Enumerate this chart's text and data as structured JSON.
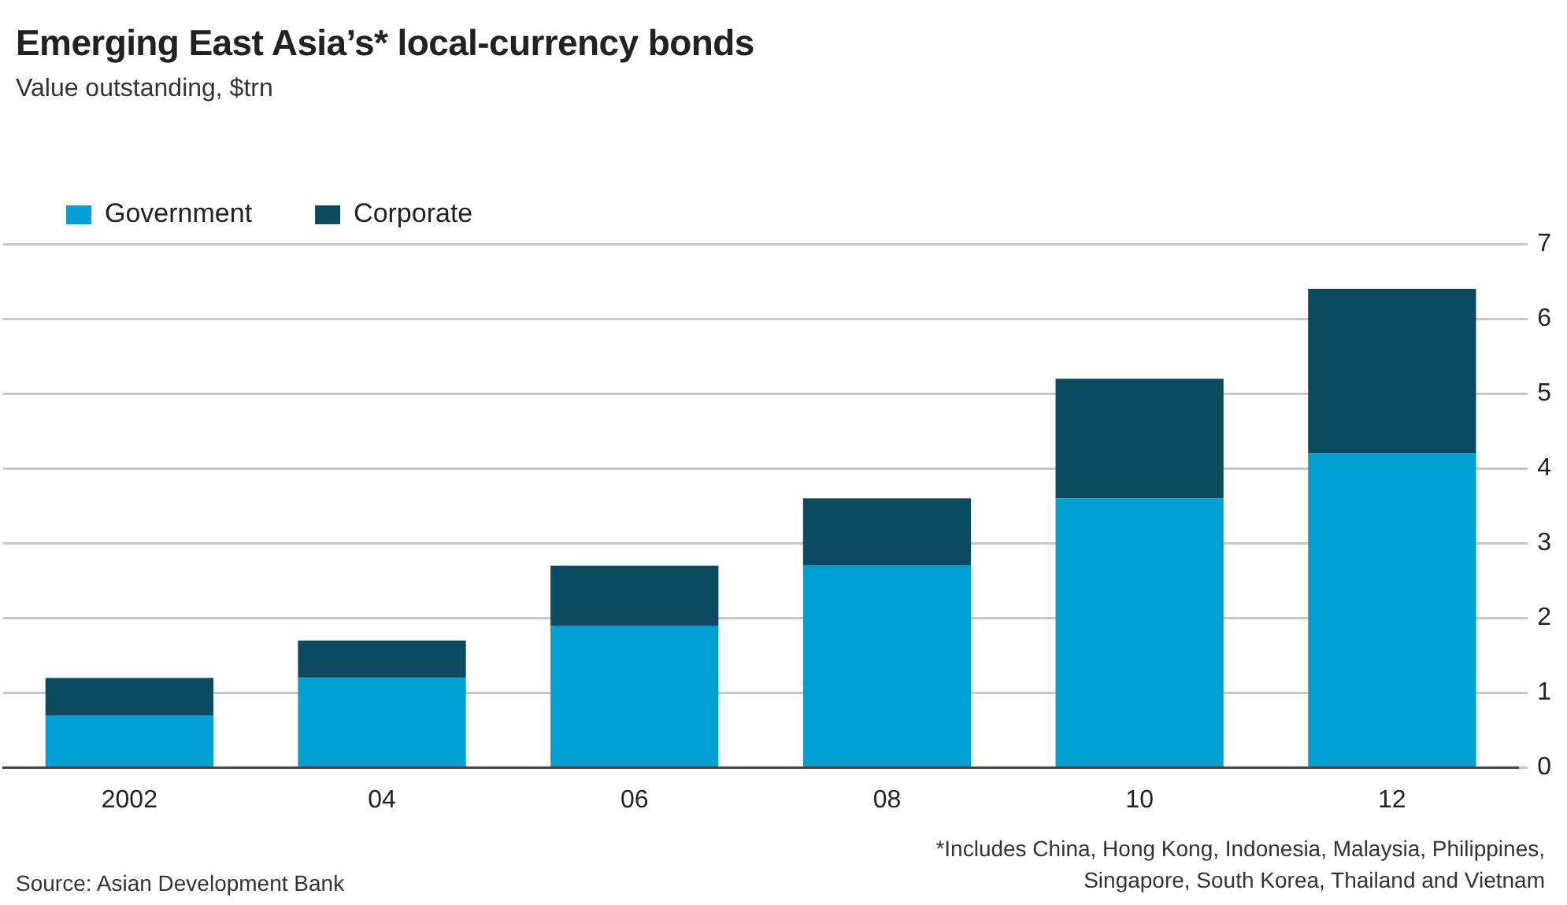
{
  "chart_data": {
    "type": "bar",
    "title": "Emerging East Asia’s* local-currency bonds",
    "subtitle": "Value outstanding, $trn",
    "categories": [
      "2002",
      "04",
      "06",
      "08",
      "10",
      "12"
    ],
    "series": [
      {
        "name": "Government",
        "color": "#00a0d2",
        "values": [
          0.7,
          1.2,
          1.9,
          2.7,
          3.6,
          4.2
        ]
      },
      {
        "name": "Corporate",
        "color": "#0b4a5f",
        "values": [
          0.5,
          0.5,
          0.8,
          0.9,
          1.6,
          2.2
        ]
      }
    ],
    "stacked": true,
    "ylim": [
      0,
      7
    ],
    "yticks": [
      0,
      1,
      2,
      3,
      4,
      5,
      6,
      7
    ],
    "grid": "y",
    "legend": "top left",
    "annotations": [
      "Source: Asian Development Bank",
      "*Includes China, Hong Kong, Indonesia, Malaysia, Philippines, Singapore, South Korea, Thailand and Vietnam"
    ]
  }
}
